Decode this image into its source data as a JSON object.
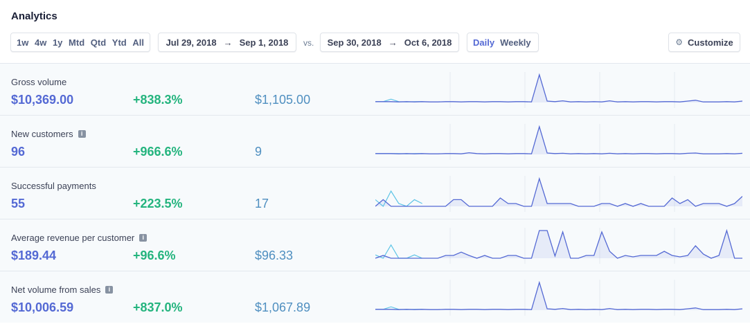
{
  "page": {
    "title": "Analytics"
  },
  "toolbar": {
    "ranges": [
      "1w",
      "4w",
      "1y",
      "Mtd",
      "Qtd",
      "Ytd",
      "All"
    ],
    "range_current": {
      "start": "Jul 29, 2018",
      "end": "Sep 1, 2018"
    },
    "vs_label": "vs.",
    "range_compare": {
      "start": "Sep 30, 2018",
      "end": "Oct 6, 2018"
    },
    "period": {
      "daily": "Daily",
      "weekly": "Weekly",
      "selected": "Daily"
    },
    "customize_label": "Customize"
  },
  "colors": {
    "primary": "#5469d4",
    "positive": "#24b47e",
    "compare": "#4f8fc0",
    "current_line": "#5469d4",
    "compare_line": "#5dc4e6"
  },
  "metrics": [
    {
      "label": "Gross volume",
      "info": false,
      "value": "$10,369.00",
      "change": "+838.3%",
      "previous": "$1,105.00",
      "spark_current": [
        0.03,
        0.03,
        0.03,
        0.02,
        0.03,
        0.02,
        0.03,
        0.02,
        0.02,
        0.03,
        0.03,
        0.02,
        0.03,
        0.03,
        0.02,
        0.03,
        0.03,
        0.02,
        0.03,
        0.03,
        0.02,
        1.0,
        0.05,
        0.03,
        0.06,
        0.02,
        0.03,
        0.02,
        0.03,
        0.02,
        0.06,
        0.02,
        0.03,
        0.02,
        0.03,
        0.03,
        0.02,
        0.03,
        0.03,
        0.02,
        0.05,
        0.08,
        0.02,
        0.02,
        0.02,
        0.03,
        0.02,
        0.05
      ],
      "spark_compare": [
        0.03,
        0.03,
        0.12,
        0.03,
        0.02,
        0.03,
        0.03
      ]
    },
    {
      "label": "New customers",
      "info": true,
      "value": "96",
      "change": "+966.6%",
      "previous": "9",
      "spark_current": [
        0.03,
        0.03,
        0.03,
        0.02,
        0.03,
        0.02,
        0.03,
        0.02,
        0.02,
        0.03,
        0.03,
        0.02,
        0.06,
        0.03,
        0.02,
        0.03,
        0.03,
        0.02,
        0.03,
        0.03,
        0.02,
        1.0,
        0.05,
        0.03,
        0.04,
        0.02,
        0.03,
        0.02,
        0.03,
        0.02,
        0.04,
        0.02,
        0.03,
        0.02,
        0.03,
        0.03,
        0.02,
        0.03,
        0.03,
        0.02,
        0.04,
        0.05,
        0.02,
        0.02,
        0.02,
        0.03,
        0.02,
        0.04
      ],
      "spark_compare": [
        0.03,
        0.03,
        0.03,
        0.03,
        0.02,
        0.03,
        0.03
      ]
    },
    {
      "label": "Successful payments",
      "info": false,
      "value": "55",
      "change": "+223.5%",
      "previous": "17",
      "spark_current": [
        0.0,
        0.24,
        0.0,
        0.0,
        0.0,
        0.0,
        0.0,
        0.0,
        0.0,
        0.0,
        0.24,
        0.24,
        0.0,
        0.0,
        0.0,
        0.0,
        0.3,
        0.1,
        0.1,
        0.0,
        0.0,
        1.0,
        0.1,
        0.1,
        0.1,
        0.1,
        0.0,
        0.0,
        0.0,
        0.1,
        0.1,
        0.0,
        0.1,
        0.0,
        0.1,
        0.0,
        0.0,
        0.0,
        0.3,
        0.1,
        0.24,
        0.0,
        0.1,
        0.1,
        0.1,
        0.0,
        0.1,
        0.36
      ],
      "spark_compare": [
        0.24,
        0.0,
        0.55,
        0.1,
        0.0,
        0.24,
        0.1
      ]
    },
    {
      "label": "Average revenue per customer",
      "info": true,
      "value": "$189.44",
      "change": "+96.6%",
      "previous": "$96.33",
      "spark_current": [
        0.0,
        0.1,
        0.0,
        0.0,
        0.0,
        0.0,
        0.0,
        0.0,
        0.0,
        0.1,
        0.1,
        0.22,
        0.1,
        0.0,
        0.1,
        0.0,
        0.0,
        0.1,
        0.1,
        0.0,
        0.0,
        1.0,
        1.0,
        0.08,
        0.95,
        0.0,
        0.0,
        0.1,
        0.1,
        0.95,
        0.25,
        0.0,
        0.1,
        0.05,
        0.1,
        0.1,
        0.1,
        0.25,
        0.1,
        0.05,
        0.1,
        0.45,
        0.15,
        0.0,
        0.1,
        1.0,
        0.0,
        0.0
      ],
      "spark_compare": [
        0.12,
        0.0,
        0.48,
        0.0,
        0.0,
        0.12,
        0.0
      ]
    },
    {
      "label": "Net volume from sales",
      "info": true,
      "value": "$10,006.59",
      "change": "+837.0%",
      "previous": "$1,067.89",
      "spark_current": [
        0.03,
        0.03,
        0.03,
        0.02,
        0.03,
        0.02,
        0.03,
        0.02,
        0.02,
        0.03,
        0.03,
        0.02,
        0.03,
        0.03,
        0.02,
        0.03,
        0.03,
        0.02,
        0.03,
        0.03,
        0.02,
        1.0,
        0.05,
        0.03,
        0.06,
        0.02,
        0.03,
        0.02,
        0.03,
        0.02,
        0.06,
        0.02,
        0.03,
        0.02,
        0.03,
        0.03,
        0.02,
        0.03,
        0.03,
        0.02,
        0.05,
        0.08,
        0.02,
        0.02,
        0.02,
        0.03,
        0.02,
        0.05
      ],
      "spark_compare": [
        0.03,
        0.03,
        0.12,
        0.03,
        0.02,
        0.03,
        0.03
      ]
    }
  ]
}
